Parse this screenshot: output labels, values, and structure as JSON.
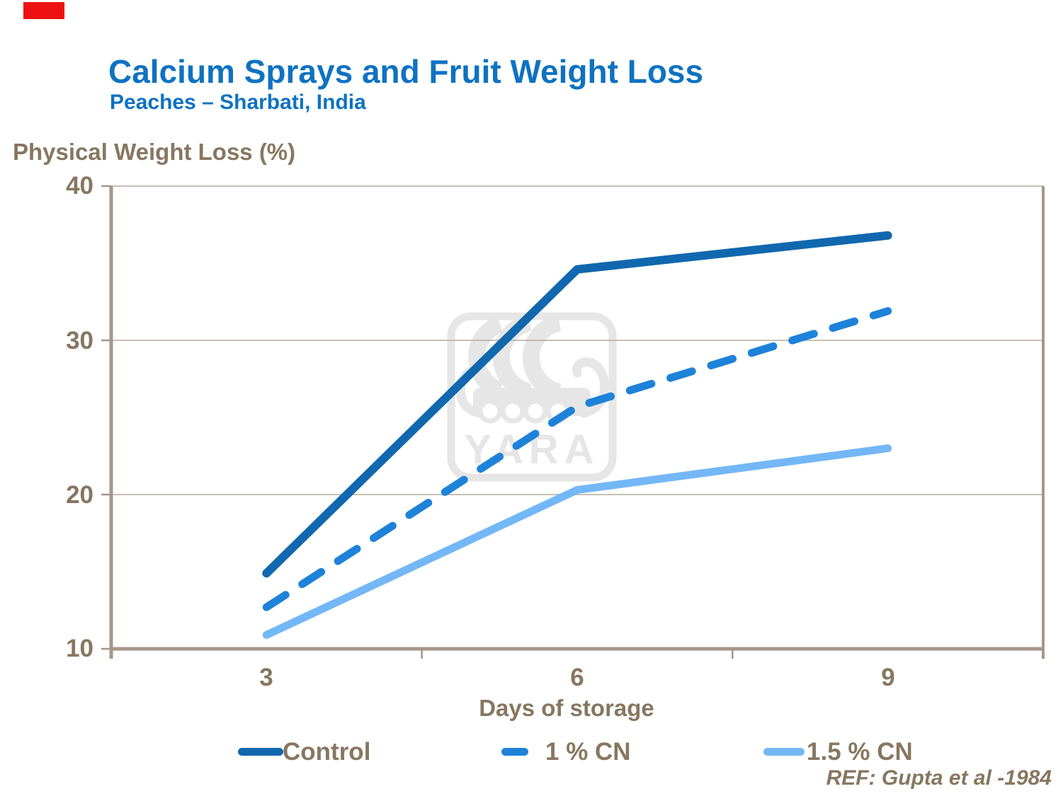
{
  "slide": {
    "title": "Calcium Sprays and Fruit Weight Loss",
    "subtitle": "Peaches – Sharbati, India",
    "ref": "REF: Gupta et al -1984",
    "watermark": "YARA"
  },
  "chart_data": {
    "type": "line",
    "title": "Calcium Sprays and Fruit Weight Loss",
    "xlabel": "Days of storage",
    "ylabel": "Physical Weight Loss (%)",
    "categories": [
      3,
      6,
      9
    ],
    "series": [
      {
        "name": "Control",
        "values": [
          14.9,
          34.6,
          36.8
        ],
        "color": "#1168ae",
        "style": "solid"
      },
      {
        "name": "1 % CN",
        "values": [
          12.7,
          25.7,
          31.9
        ],
        "color": "#1e82d9",
        "style": "dashed"
      },
      {
        "name": "1.5 % CN",
        "values": [
          10.9,
          20.3,
          23.0
        ],
        "color": "#74b7f7",
        "style": "solid"
      }
    ],
    "ylim": [
      10,
      40
    ],
    "y_ticks": [
      40,
      30,
      20,
      10
    ],
    "grid": true,
    "legend_position": "bottom"
  },
  "colors": {
    "title_blue": "#0e72c2",
    "label_taupe": "#877761",
    "axis_line": "#a5978a",
    "gridline": "#b5aa9e",
    "watermark_gray": "#e6e6e6",
    "red_marker": "#ee1111"
  }
}
